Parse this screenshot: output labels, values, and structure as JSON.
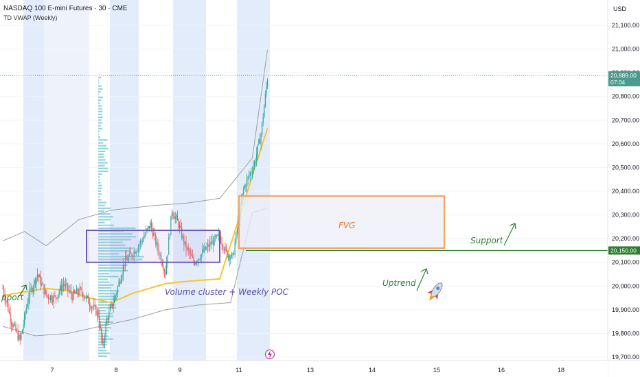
{
  "header": {
    "symbol_line": "NASDAQ 100 E-mini Futures · 30 · CME",
    "indicator_line": "TD VWAP (Weekly)"
  },
  "price_axis": {
    "currency": "USD",
    "last_price": "20,889.00",
    "countdown": "07:04",
    "support_price": "20,150.00"
  },
  "colors": {
    "bull": "#26a69a",
    "bear": "#ef5350",
    "vwap": "#f9c22e",
    "band": "#9e9e9e",
    "fvg_stroke": "#f5a15a",
    "fvg_fill": "#ededf8",
    "cluster_stroke": "#6e5bb5",
    "volume_profile": "#7ecbd4",
    "session_shade": "#e3ecfa",
    "support_line": "#2e7d32",
    "annotation_green": "#2e7d32",
    "annotation_purple": "#5b4aa8",
    "annotation_orange": "#e57a2e"
  },
  "annotations": {
    "fvg": "FVG",
    "support_right": "Support",
    "support_left": "pport",
    "uptrend": "Uptrend",
    "volume_cluster": "Volume cluster + Weekly POC"
  },
  "chart_data": {
    "type": "candlestick",
    "ylim": [
      19650,
      21200
    ],
    "y_ticks": [
      19700,
      19800,
      19900,
      20000,
      20100,
      20200,
      20300,
      20400,
      20500,
      20600,
      20700,
      20800,
      20900,
      21000,
      21100
    ],
    "y_tick_labels": [
      "19,700.00",
      "19,800.00",
      "19,900.00",
      "20,000.00",
      "20,100.00",
      "20,200.00",
      "20,300.00",
      "20,400.00",
      "20,500.00",
      "20,600.00",
      "20,700.00",
      "20,800.00",
      "20,900.00",
      "21,000.00",
      "21,100.00"
    ],
    "x_ticks": [
      "7",
      "8",
      "9",
      "11",
      "13",
      "14",
      "15",
      "16",
      "18"
    ],
    "last_price": 20889,
    "support_level": 20150,
    "fvg_zone": [
      20160,
      20380
    ],
    "volume_cluster_zone": [
      20100,
      20235
    ],
    "session_markers": [
      "8",
      "9",
      "11"
    ],
    "price_path_keypoints": [
      [
        0,
        19990
      ],
      [
        8,
        19850
      ],
      [
        16,
        19770
      ],
      [
        24,
        19960
      ],
      [
        32,
        20050
      ],
      [
        40,
        19960
      ],
      [
        48,
        19950
      ],
      [
        56,
        20010
      ],
      [
        64,
        19960
      ],
      [
        72,
        19980
      ],
      [
        80,
        19930
      ],
      [
        88,
        19880
      ],
      [
        92,
        19740
      ],
      [
        96,
        19860
      ],
      [
        104,
        19960
      ],
      [
        112,
        20100
      ],
      [
        120,
        20140
      ],
      [
        128,
        20190
      ],
      [
        136,
        20260
      ],
      [
        142,
        20170
      ],
      [
        150,
        20060
      ],
      [
        156,
        20320
      ],
      [
        162,
        20260
      ],
      [
        168,
        20170
      ],
      [
        176,
        20100
      ],
      [
        184,
        20140
      ],
      [
        192,
        20180
      ],
      [
        200,
        20210
      ],
      [
        206,
        20140
      ],
      [
        212,
        20120
      ],
      [
        222,
        20410
      ],
      [
        232,
        20520
      ],
      [
        238,
        20640
      ],
      [
        244,
        20880
      ]
    ],
    "vwap_path": [
      [
        0,
        19960
      ],
      [
        40,
        19990
      ],
      [
        60,
        19980
      ],
      [
        80,
        19950
      ],
      [
        100,
        19930
      ],
      [
        120,
        19970
      ],
      [
        150,
        20010
      ],
      [
        170,
        20020
      ],
      [
        200,
        20030
      ],
      [
        245,
        20680
      ]
    ],
    "upper_band_path": [
      [
        0,
        20190
      ],
      [
        20,
        20230
      ],
      [
        40,
        20170
      ],
      [
        70,
        20280
      ],
      [
        100,
        20320
      ],
      [
        140,
        20340
      ],
      [
        170,
        20350
      ],
      [
        200,
        20370
      ],
      [
        230,
        20540
      ],
      [
        245,
        21030
      ]
    ],
    "lower_band_path": [
      [
        0,
        19830
      ],
      [
        30,
        19790
      ],
      [
        60,
        19800
      ],
      [
        90,
        19830
      ],
      [
        120,
        19860
      ],
      [
        150,
        19900
      ],
      [
        180,
        19920
      ],
      [
        210,
        19930
      ],
      [
        230,
        20310
      ],
      [
        245,
        20330
      ]
    ]
  }
}
